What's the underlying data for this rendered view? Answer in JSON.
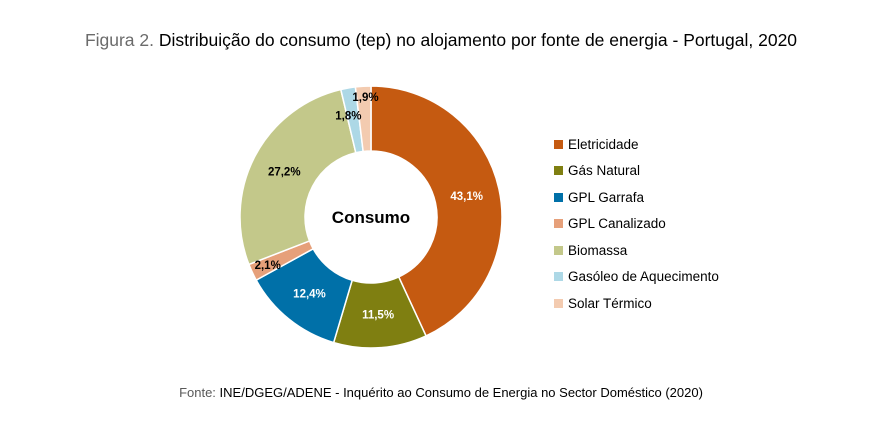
{
  "title": {
    "prefix": "Figura 2.",
    "text": "Distribuição do consumo (tep) no alojamento por fonte de energia - Portugal, 2020"
  },
  "source": {
    "prefix": "Fonte:",
    "text": "INE/DGEG/ADENE - Inquérito ao Consumo de Energia no Sector Doméstico (2020)"
  },
  "chart_data": {
    "type": "pie",
    "variant": "donut",
    "center_label": "Consumo",
    "legend_position": "right",
    "categories": [
      "Eletricidade",
      "Gás Natural",
      "GPL Garrafa",
      "GPL Canalizado",
      "Biomassa",
      "Gasóleo de Aquecimento",
      "Solar Térmico"
    ],
    "values": [
      43.1,
      11.5,
      12.4,
      2.1,
      27.2,
      1.8,
      1.9
    ],
    "value_labels": [
      "43,1%",
      "11,5%",
      "12,4%",
      "2,1%",
      "27,2%",
      "1,8%",
      "1,9%"
    ],
    "colors": [
      "#C55A11",
      "#7F7F11",
      "#0070A8",
      "#E6A07A",
      "#C3C88A",
      "#ADD8E6",
      "#F3CBB0"
    ],
    "label_colors": [
      "#ffffff",
      "#ffffff",
      "#ffffff",
      "#000000",
      "#000000",
      "#000000",
      "#000000"
    ]
  }
}
